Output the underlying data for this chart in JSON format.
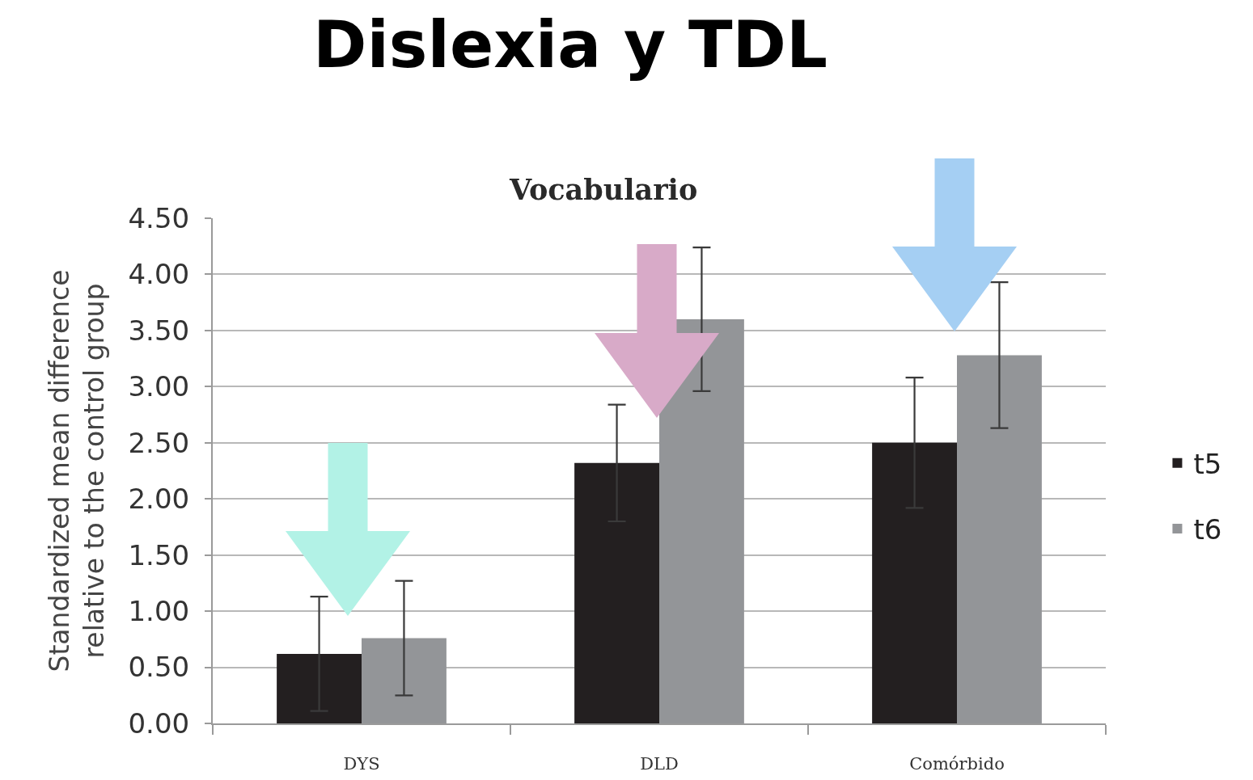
{
  "chart_data": {
    "type": "bar",
    "title": "Dislexia y TDL",
    "subtitle": "Vocabulario",
    "ylabel": "Standardized mean difference relative to the control group",
    "categories": [
      "DYS",
      "DLD",
      "Comórbido"
    ],
    "series": [
      {
        "name": "t5",
        "color": "#231f20",
        "values": [
          0.62,
          2.32,
          2.5
        ],
        "errors": [
          0.51,
          0.52,
          0.58
        ]
      },
      {
        "name": "t6",
        "color": "#939598",
        "values": [
          0.76,
          3.6,
          3.28
        ],
        "errors": [
          0.51,
          0.64,
          0.65
        ]
      }
    ],
    "ylim": [
      0,
      4.5
    ],
    "yticks": [
      {
        "value": 0,
        "label": "0.00"
      },
      {
        "value": 0.5,
        "label": "0.50"
      },
      {
        "value": 1,
        "label": "1.00"
      },
      {
        "value": 1.5,
        "label": "1.50"
      },
      {
        "value": 2,
        "label": "2.00"
      },
      {
        "value": 2.5,
        "label": "2.50"
      },
      {
        "value": 3,
        "label": "3.00"
      },
      {
        "value": 3.5,
        "label": "3.50"
      },
      {
        "value": 4,
        "label": "4.00"
      },
      {
        "value": 4.5,
        "label": "4.50"
      }
    ],
    "grid": "y",
    "legend": "right"
  }
}
